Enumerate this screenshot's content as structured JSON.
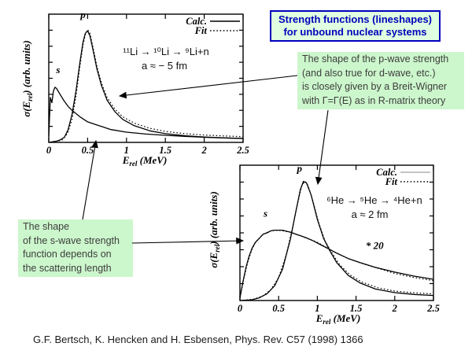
{
  "slide": {
    "title": "Strength functions (lineshapes)\nfor unbound nuclear systems",
    "citation": "G.F. Bertsch, K. Hencken and H. Esbensen, Phys. Rev. C57 (1998) 1366",
    "colors": {
      "title_text": "#0000bb",
      "title_border": "#0000bb",
      "title_bg": "#e0ffe0",
      "callout_bg": "#ccf6cc",
      "callout_text": "#3d3d3d",
      "curve": "#000000",
      "legend_gray_line": "#b0b0b0"
    }
  },
  "callouts": {
    "p_wave": "The shape of the p-wave strength\n(and also true for d-wave, etc.)\nis closely given by a Breit-Wigner\nwith Γ=Γ(E) as in R-matrix theory",
    "s_wave": "The shape\nof the s-wave strength\nfunction depends on\nthe scattering length"
  },
  "chart_data": [
    {
      "type": "line",
      "title": "",
      "reaction": "¹¹Li → ¹⁰Li → ⁹Li+n",
      "a_label": "a ≈ − 5 fm",
      "xlabel": {
        "prefix": "E",
        "sub": "rel",
        "suffix": " (MeV)"
      },
      "ylabel": {
        "prefix": "σ(E",
        "sub": "rel",
        "suffix": ") (arb. units)"
      },
      "xlim": [
        0,
        2.5
      ],
      "ylim": [
        0,
        1
      ],
      "grid": false,
      "legend_position": "top-right",
      "x_ticks": [
        "0",
        "0.5",
        "1",
        "1.5",
        "2",
        "2.5"
      ],
      "legend": [
        {
          "label": "Calc.",
          "style": "solid",
          "line_color": "#000000"
        },
        {
          "label": "Fit",
          "style": "dotted",
          "line_color": "#000000"
        }
      ],
      "curve_labels": [
        {
          "text": "s",
          "x": 0.12,
          "y": 0.54
        },
        {
          "text": "p",
          "x": 0.44,
          "y": 0.97
        }
      ],
      "series": [
        {
          "name": "s-wave Calc.",
          "style": "solid",
          "points": [
            [
              0,
              0.05
            ],
            [
              0.02,
              0.35
            ],
            [
              0.04,
              0.31
            ],
            [
              0.06,
              0.4
            ],
            [
              0.08,
              0.43
            ],
            [
              0.1,
              0.42
            ],
            [
              0.15,
              0.37
            ],
            [
              0.2,
              0.32
            ],
            [
              0.25,
              0.28
            ],
            [
              0.3,
              0.25
            ],
            [
              0.4,
              0.2
            ],
            [
              0.5,
              0.16
            ],
            [
              0.6,
              0.14
            ],
            [
              0.8,
              0.1
            ],
            [
              1.0,
              0.08
            ],
            [
              1.25,
              0.065
            ],
            [
              1.5,
              0.055
            ],
            [
              1.75,
              0.047
            ],
            [
              2.0,
              0.04
            ],
            [
              2.25,
              0.035
            ],
            [
              2.5,
              0.031
            ]
          ]
        },
        {
          "name": "p-wave Calc.",
          "style": "solid",
          "points": [
            [
              0,
              0
            ],
            [
              0.1,
              0.01
            ],
            [
              0.15,
              0.02
            ],
            [
              0.2,
              0.04
            ],
            [
              0.25,
              0.1
            ],
            [
              0.3,
              0.22
            ],
            [
              0.35,
              0.4
            ],
            [
              0.4,
              0.62
            ],
            [
              0.44,
              0.78
            ],
            [
              0.47,
              0.85
            ],
            [
              0.5,
              0.87
            ],
            [
              0.53,
              0.83
            ],
            [
              0.57,
              0.72
            ],
            [
              0.62,
              0.57
            ],
            [
              0.68,
              0.44
            ],
            [
              0.75,
              0.33
            ],
            [
              0.85,
              0.24
            ],
            [
              0.95,
              0.18
            ],
            [
              1.1,
              0.13
            ],
            [
              1.3,
              0.09
            ],
            [
              1.5,
              0.068
            ],
            [
              1.75,
              0.052
            ],
            [
              2.0,
              0.042
            ],
            [
              2.25,
              0.035
            ],
            [
              2.5,
              0.03
            ]
          ]
        },
        {
          "name": "p-wave Fit",
          "style": "dotted",
          "points": [
            [
              0,
              0
            ],
            [
              0.12,
              0.01
            ],
            [
              0.18,
              0.02
            ],
            [
              0.24,
              0.07
            ],
            [
              0.3,
              0.18
            ],
            [
              0.35,
              0.36
            ],
            [
              0.4,
              0.59
            ],
            [
              0.44,
              0.76
            ],
            [
              0.47,
              0.84
            ],
            [
              0.5,
              0.88
            ],
            [
              0.53,
              0.85
            ],
            [
              0.57,
              0.74
            ],
            [
              0.62,
              0.59
            ],
            [
              0.68,
              0.46
            ],
            [
              0.75,
              0.35
            ],
            [
              0.85,
              0.26
            ],
            [
              0.95,
              0.2
            ],
            [
              1.1,
              0.15
            ],
            [
              1.3,
              0.11
            ],
            [
              1.5,
              0.086
            ],
            [
              1.75,
              0.068
            ],
            [
              2.0,
              0.057
            ],
            [
              2.25,
              0.05
            ],
            [
              2.5,
              0.045
            ]
          ]
        }
      ]
    },
    {
      "type": "line",
      "title": "",
      "reaction": "⁶He → ⁵He → ⁴He+n",
      "a_label": "a ≈ 2 fm",
      "xlabel": {
        "prefix": "E",
        "sub": "rel",
        "suffix": " (MeV)"
      },
      "ylabel": {
        "prefix": "σ(E",
        "sub": "rel",
        "suffix": ") (arb. units)"
      },
      "xlim": [
        0,
        2.5
      ],
      "ylim": [
        0,
        1
      ],
      "grid": false,
      "legend_position": "top-right",
      "x_ticks": [
        "0",
        "0.5",
        "1",
        "1.5",
        "2",
        "2.5"
      ],
      "legend": [
        {
          "label": "Calc.",
          "style": "solid",
          "line_color": "#b0b0b0"
        },
        {
          "label": "Fit",
          "style": "dotted",
          "line_color": "#000000"
        }
      ],
      "curve_labels": [
        {
          "text": "s",
          "x": 0.33,
          "y": 0.62
        },
        {
          "text": "p",
          "x": 0.77,
          "y": 0.95
        },
        {
          "text": "* 20",
          "x": 1.74,
          "y": 0.38
        }
      ],
      "series": [
        {
          "name": "s-wave Calc. (x20)",
          "style": "solid",
          "points": [
            [
              0,
              0.02
            ],
            [
              0.04,
              0.14
            ],
            [
              0.08,
              0.25
            ],
            [
              0.12,
              0.33
            ],
            [
              0.16,
              0.39
            ],
            [
              0.2,
              0.43
            ],
            [
              0.25,
              0.46
            ],
            [
              0.3,
              0.49
            ],
            [
              0.35,
              0.5
            ],
            [
              0.4,
              0.515
            ],
            [
              0.45,
              0.52
            ],
            [
              0.55,
              0.52
            ],
            [
              0.65,
              0.505
            ],
            [
              0.75,
              0.485
            ],
            [
              0.85,
              0.465
            ],
            [
              0.95,
              0.44
            ],
            [
              1.05,
              0.41
            ],
            [
              1.15,
              0.38
            ],
            [
              1.25,
              0.35
            ],
            [
              1.4,
              0.31
            ],
            [
              1.55,
              0.28
            ],
            [
              1.75,
              0.245
            ],
            [
              2.0,
              0.21
            ],
            [
              2.25,
              0.18
            ],
            [
              2.5,
              0.157
            ]
          ]
        },
        {
          "name": "s-wave Fit (x20)",
          "style": "dotted",
          "points": [
            [
              0,
              0.02
            ],
            [
              0.05,
              0.16
            ],
            [
              0.1,
              0.28
            ],
            [
              0.15,
              0.37
            ],
            [
              0.2,
              0.43
            ],
            [
              0.3,
              0.49
            ],
            [
              0.4,
              0.515
            ],
            [
              0.5,
              0.52
            ],
            [
              0.65,
              0.505
            ],
            [
              0.8,
              0.475
            ],
            [
              1.0,
              0.43
            ],
            [
              1.2,
              0.365
            ],
            [
              1.4,
              0.31
            ],
            [
              1.6,
              0.27
            ],
            [
              1.8,
              0.235
            ],
            [
              2.0,
              0.2
            ],
            [
              2.25,
              0.17
            ],
            [
              2.5,
              0.147
            ]
          ]
        },
        {
          "name": "p-wave Calc.",
          "style": "solid",
          "points": [
            [
              0,
              0
            ],
            [
              0.15,
              0.005
            ],
            [
              0.25,
              0.02
            ],
            [
              0.35,
              0.05
            ],
            [
              0.45,
              0.11
            ],
            [
              0.55,
              0.23
            ],
            [
              0.65,
              0.45
            ],
            [
              0.72,
              0.65
            ],
            [
              0.78,
              0.82
            ],
            [
              0.82,
              0.88
            ],
            [
              0.86,
              0.87
            ],
            [
              0.92,
              0.78
            ],
            [
              1.0,
              0.6
            ],
            [
              1.08,
              0.46
            ],
            [
              1.16,
              0.37
            ],
            [
              1.25,
              0.28
            ],
            [
              1.4,
              0.185
            ],
            [
              1.55,
              0.13
            ],
            [
              1.75,
              0.085
            ],
            [
              2.0,
              0.058
            ],
            [
              2.25,
              0.045
            ],
            [
              2.5,
              0.037
            ]
          ]
        },
        {
          "name": "p-wave Fit",
          "style": "dotted",
          "points": [
            [
              0,
              0
            ],
            [
              0.18,
              0.01
            ],
            [
              0.3,
              0.035
            ],
            [
              0.4,
              0.08
            ],
            [
              0.5,
              0.17
            ],
            [
              0.6,
              0.34
            ],
            [
              0.68,
              0.54
            ],
            [
              0.75,
              0.73
            ],
            [
              0.8,
              0.85
            ],
            [
              0.84,
              0.88
            ],
            [
              0.88,
              0.85
            ],
            [
              0.94,
              0.74
            ],
            [
              1.02,
              0.57
            ],
            [
              1.1,
              0.44
            ],
            [
              1.18,
              0.36
            ],
            [
              1.28,
              0.27
            ],
            [
              1.42,
              0.19
            ],
            [
              1.58,
              0.135
            ],
            [
              1.78,
              0.095
            ],
            [
              2.0,
              0.07
            ],
            [
              2.25,
              0.057
            ],
            [
              2.5,
              0.048
            ]
          ]
        }
      ]
    }
  ]
}
